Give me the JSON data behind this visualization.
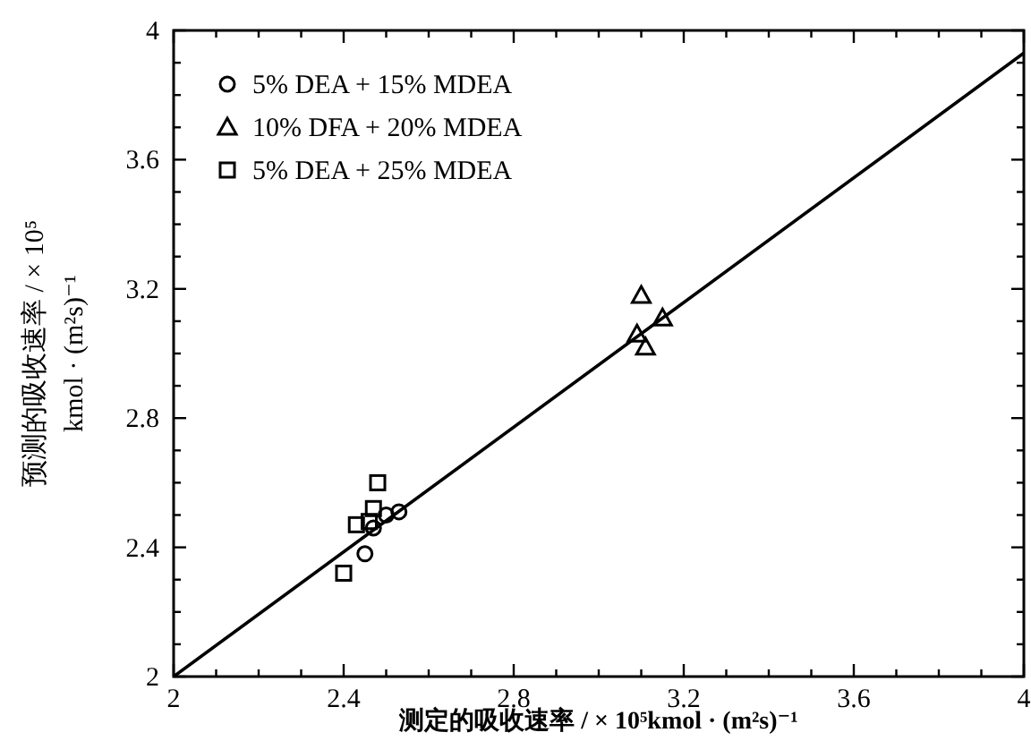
{
  "chart_data": {
    "type": "scatter",
    "xlabel": "测定的吸收速率 / × 10⁵kmol · (m²s)⁻¹",
    "ylabel": "预测的吸收速率 / × 10⁵\nkmol · (m²s)⁻¹",
    "xlim": [
      2,
      4
    ],
    "ylim": [
      2,
      4
    ],
    "xticks": [
      2,
      {
        "value": 2.1,
        "label": null
      },
      {
        "value": 2.2,
        "label": null
      },
      {
        "value": 2.3,
        "label": null
      },
      {
        "value": 2.4,
        "label": "2.4"
      },
      {
        "value": 2.5,
        "label": null
      },
      {
        "value": 2.6,
        "label": null
      },
      {
        "value": 2.7,
        "label": null
      },
      {
        "value": 2.8,
        "label": "2.8"
      },
      {
        "value": 2.9,
        "label": null
      },
      {
        "value": 3.0,
        "label": null
      },
      {
        "value": 3.1,
        "label": null
      },
      {
        "value": 3.2,
        "label": "3.2"
      },
      {
        "value": 3.3,
        "label": null
      },
      {
        "value": 3.4,
        "label": null
      },
      {
        "value": 3.5,
        "label": null
      },
      {
        "value": 3.6,
        "label": "3.6"
      },
      {
        "value": 3.7,
        "label": null
      },
      {
        "value": 3.8,
        "label": null
      },
      {
        "value": 3.9,
        "label": null
      },
      4
    ],
    "yticks": [
      2,
      {
        "value": 2.1,
        "label": null
      },
      {
        "value": 2.2,
        "label": null
      },
      {
        "value": 2.3,
        "label": null
      },
      {
        "value": 2.4,
        "label": "2.4"
      },
      {
        "value": 2.5,
        "label": null
      },
      {
        "value": 2.6,
        "label": null
      },
      {
        "value": 2.7,
        "label": null
      },
      {
        "value": 2.8,
        "label": "2.8"
      },
      {
        "value": 2.9,
        "label": null
      },
      {
        "value": 3.0,
        "label": null
      },
      {
        "value": 3.1,
        "label": null
      },
      {
        "value": 3.2,
        "label": "3.2"
      },
      {
        "value": 3.3,
        "label": null
      },
      {
        "value": 3.4,
        "label": null
      },
      {
        "value": 3.5,
        "label": null
      },
      {
        "value": 3.6,
        "label": "3.6"
      },
      {
        "value": 3.7,
        "label": null
      },
      {
        "value": 3.8,
        "label": null
      },
      {
        "value": 3.9,
        "label": null
      },
      4
    ],
    "grid": false,
    "legend": "top left",
    "series": [
      {
        "name": "5% DEA + 15% MDEA",
        "color": "#000000",
        "marker": "circle",
        "x": [
          2.45,
          2.47,
          2.5,
          2.53
        ],
        "values": [
          2.38,
          2.46,
          2.5,
          2.51
        ]
      },
      {
        "name": "10% DFA + 20% MDEA",
        "color": "#000000",
        "marker": "triangle",
        "x": [
          3.1,
          3.09,
          3.11,
          3.15
        ],
        "values": [
          3.18,
          3.06,
          3.02,
          3.11
        ]
      },
      {
        "name": "5% DEA + 25% MDEA",
        "color": "#000000",
        "marker": "square",
        "x": [
          2.4,
          2.43,
          2.46,
          2.47,
          2.48
        ],
        "values": [
          2.32,
          2.47,
          2.48,
          2.52,
          2.6
        ]
      },
      {
        "type": "line",
        "color": "#000000",
        "marker": "none",
        "x": [
          2,
          4
        ],
        "values": [
          2,
          3.93
        ]
      }
    ]
  }
}
